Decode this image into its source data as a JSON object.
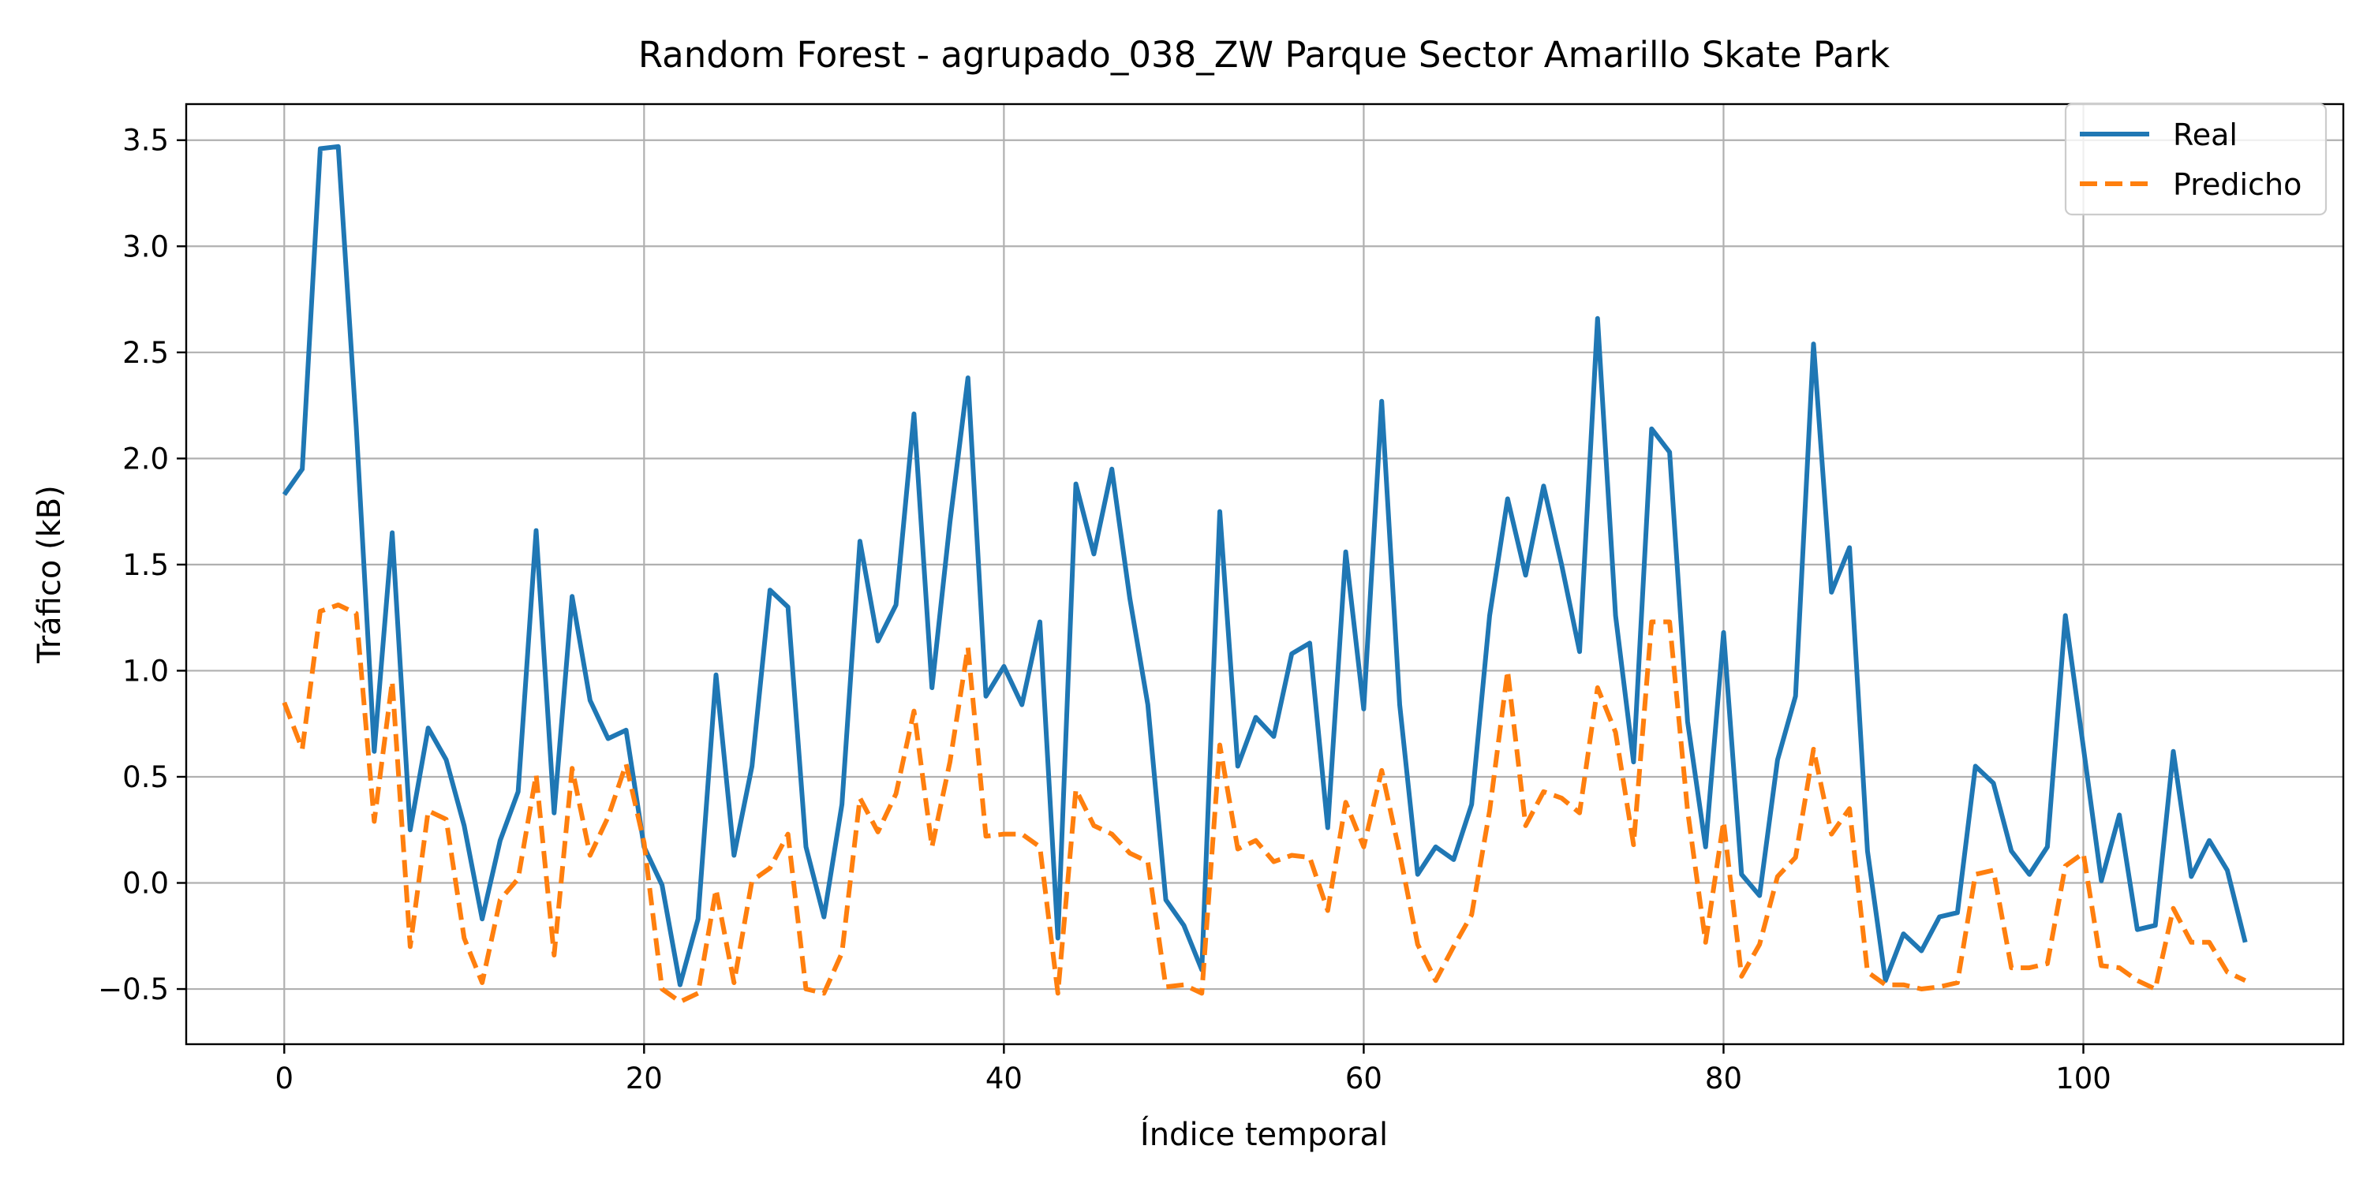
{
  "chart_data": {
    "type": "line",
    "title": "Random Forest - agrupado_038_ZW Parque Sector Amarillo Skate Park",
    "xlabel": "Índice temporal",
    "ylabel": "Tráfico (kB)",
    "xlim": [
      -5.45,
      114.45
    ],
    "ylim": [
      -0.76,
      3.67
    ],
    "xticks": [
      0,
      20,
      40,
      60,
      80,
      100
    ],
    "yticks": [
      -0.5,
      0.0,
      0.5,
      1.0,
      1.5,
      2.0,
      2.5,
      3.0,
      3.5
    ],
    "ytick_labels": [
      "−0.5",
      "0.0",
      "0.5",
      "1.0",
      "1.5",
      "2.0",
      "2.5",
      "3.0",
      "3.5"
    ],
    "grid": true,
    "legend": "top-right",
    "colors": {
      "Real": "#1f77b4",
      "Predicho": "#ff7f0e"
    },
    "series": [
      {
        "name": "Real",
        "style": "solid",
        "values": [
          1.83,
          1.95,
          3.46,
          3.47,
          2.15,
          0.62,
          1.65,
          0.25,
          0.73,
          0.58,
          0.27,
          -0.17,
          0.2,
          0.43,
          1.66,
          0.33,
          1.35,
          0.86,
          0.68,
          0.72,
          0.17,
          -0.01,
          -0.48,
          -0.17,
          0.98,
          0.13,
          0.55,
          1.38,
          1.3,
          0.17,
          -0.16,
          0.37,
          1.61,
          1.14,
          1.31,
          2.21,
          0.92,
          1.7,
          2.38,
          0.88,
          1.02,
          0.84,
          1.23,
          -0.26,
          1.88,
          1.55,
          1.95,
          1.34,
          0.84,
          -0.08,
          -0.2,
          -0.41,
          1.75,
          0.55,
          0.78,
          0.69,
          1.08,
          1.13,
          0.26,
          1.56,
          0.82,
          2.27,
          0.84,
          0.04,
          0.17,
          0.11,
          0.37,
          1.26,
          1.81,
          1.45,
          1.87,
          1.5,
          1.09,
          2.66,
          1.26,
          0.57,
          2.14,
          2.03,
          0.76,
          0.17,
          1.18,
          0.04,
          -0.06,
          0.58,
          0.88,
          2.54,
          1.37,
          1.58,
          0.15,
          -0.46,
          -0.24,
          -0.32,
          -0.16,
          -0.14,
          0.55,
          0.47,
          0.15,
          0.04,
          0.17,
          1.26,
          0.64,
          0.01,
          0.32,
          -0.22,
          -0.2,
          0.62,
          0.03,
          0.2,
          0.06,
          -0.28
        ]
      },
      {
        "name": "Predicho",
        "style": "dashed",
        "values": [
          0.85,
          0.63,
          1.28,
          1.31,
          1.27,
          0.29,
          0.95,
          -0.3,
          0.34,
          0.3,
          -0.26,
          -0.47,
          -0.08,
          0.02,
          0.51,
          -0.34,
          0.54,
          0.13,
          0.31,
          0.56,
          0.19,
          -0.5,
          -0.56,
          -0.52,
          -0.03,
          -0.47,
          0.01,
          0.07,
          0.23,
          -0.5,
          -0.52,
          -0.33,
          0.4,
          0.24,
          0.42,
          0.81,
          0.17,
          0.57,
          1.11,
          0.22,
          0.23,
          0.23,
          0.17,
          -0.52,
          0.44,
          0.27,
          0.23,
          0.14,
          0.1,
          -0.49,
          -0.48,
          -0.52,
          0.65,
          0.16,
          0.2,
          0.1,
          0.13,
          0.12,
          -0.13,
          0.38,
          0.17,
          0.53,
          0.14,
          -0.29,
          -0.46,
          -0.3,
          -0.15,
          0.34,
          1.0,
          0.27,
          0.43,
          0.4,
          0.33,
          0.92,
          0.71,
          0.18,
          1.23,
          1.23,
          0.34,
          -0.28,
          0.29,
          -0.44,
          -0.29,
          0.03,
          0.12,
          0.63,
          0.23,
          0.35,
          -0.42,
          -0.48,
          -0.48,
          -0.5,
          -0.49,
          -0.47,
          0.04,
          0.06,
          -0.4,
          -0.4,
          -0.38,
          0.08,
          0.14,
          -0.39,
          -0.4,
          -0.46,
          -0.5,
          -0.12,
          -0.28,
          -0.28,
          -0.42,
          -0.46
        ]
      }
    ]
  }
}
